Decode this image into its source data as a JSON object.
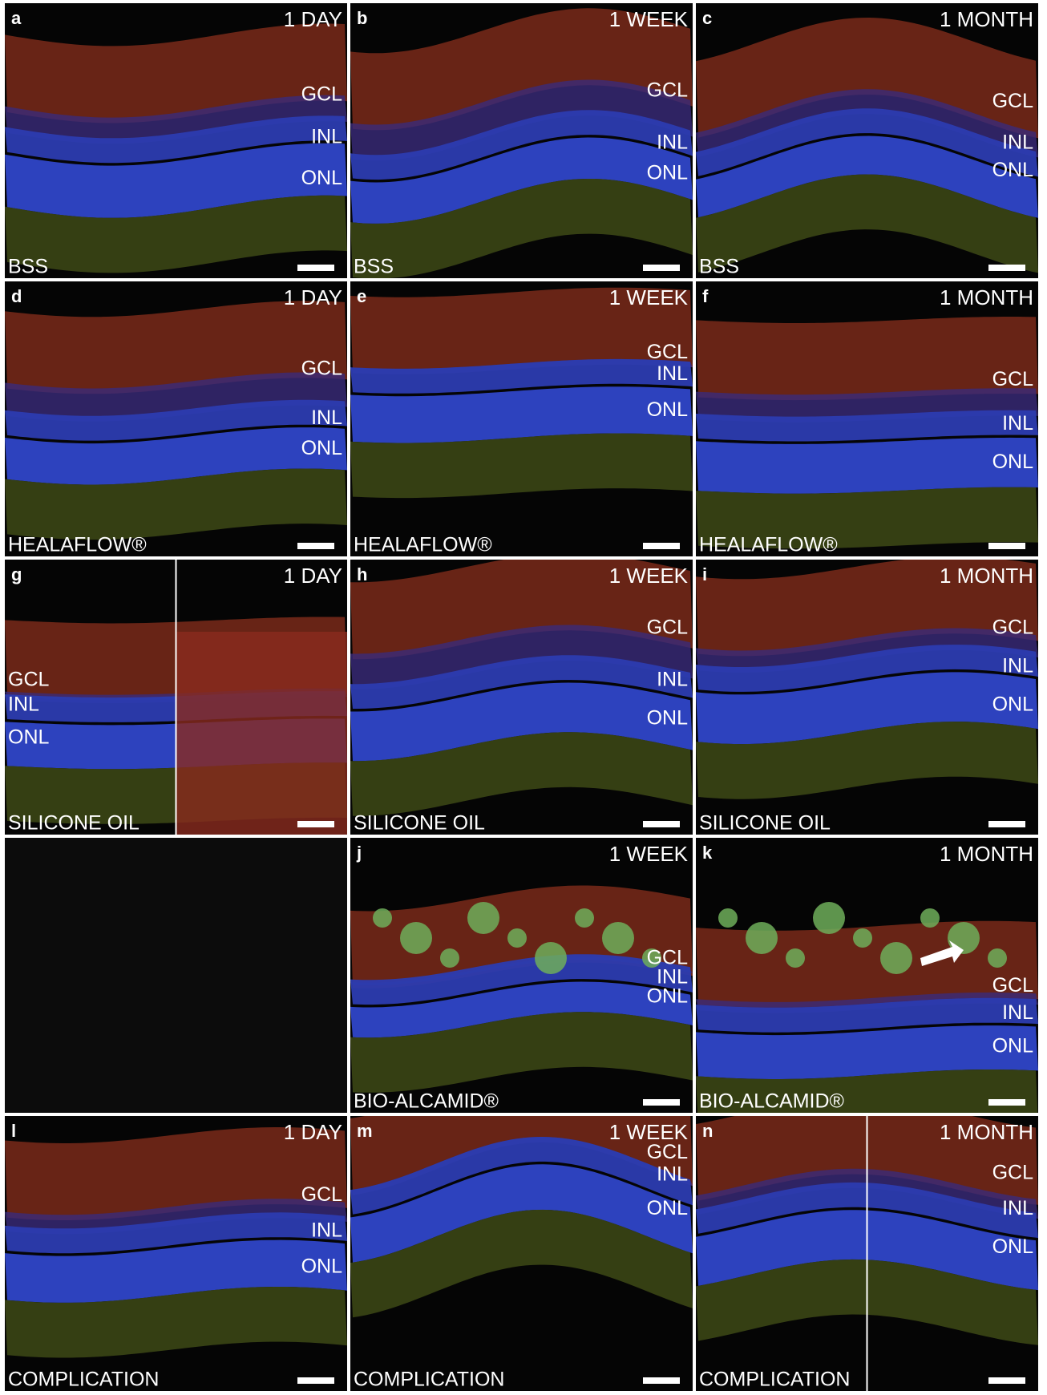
{
  "panels": [
    {
      "letter": "a",
      "time": "1 DAY",
      "treatment": "BSS",
      "layers": [
        "GCL",
        "INL",
        "ONL"
      ]
    },
    {
      "letter": "b",
      "time": "1 WEEK",
      "treatment": "BSS",
      "layers": [
        "GCL",
        "INL",
        "ONL"
      ]
    },
    {
      "letter": "c",
      "time": "1 MONTH",
      "treatment": "BSS",
      "layers": [
        "GCL",
        "INL",
        "ONL"
      ]
    },
    {
      "letter": "d",
      "time": "1 DAY",
      "treatment": "HEALAFLOW®",
      "layers": [
        "GCL",
        "INL",
        "ONL"
      ]
    },
    {
      "letter": "e",
      "time": "1 WEEK",
      "treatment": "HEALAFLOW®",
      "layers": [
        "GCL",
        "INL",
        "ONL"
      ]
    },
    {
      "letter": "f",
      "time": "1 MONTH",
      "treatment": "HEALAFLOW®",
      "layers": [
        "GCL",
        "INL",
        "ONL"
      ]
    },
    {
      "letter": "g",
      "time": "1 DAY",
      "treatment": "SILICONE OIL",
      "layers": [
        "GCL",
        "INL",
        "ONL"
      ]
    },
    {
      "letter": "h",
      "time": "1 WEEK",
      "treatment": "SILICONE OIL",
      "layers": [
        "GCL",
        "INL",
        "ONL"
      ]
    },
    {
      "letter": "i",
      "time": "1 MONTH",
      "treatment": "SILICONE OIL",
      "layers": [
        "GCL",
        "INL",
        "ONL"
      ]
    },
    {
      "letter": "j",
      "time": "1 WEEK",
      "treatment": "BIO-ALCAMID®",
      "layers": [
        "GCL",
        "INL",
        "ONL"
      ]
    },
    {
      "letter": "k",
      "time": "1 MONTH",
      "treatment": "BIO-ALCAMID®",
      "layers": [
        "GCL",
        "INL",
        "ONL"
      ]
    },
    {
      "letter": "l",
      "time": "1 DAY",
      "treatment": "COMPLICATION",
      "layers": [
        "GCL",
        "INL",
        "ONL"
      ]
    },
    {
      "letter": "m",
      "time": "1 WEEK",
      "treatment": "COMPLICATION",
      "layers": [
        "GCL",
        "INL",
        "ONL"
      ]
    },
    {
      "letter": "n",
      "time": "1 MONTH",
      "treatment": "COMPLICATION",
      "layers": [
        "GCL",
        "INL",
        "ONL"
      ]
    }
  ]
}
